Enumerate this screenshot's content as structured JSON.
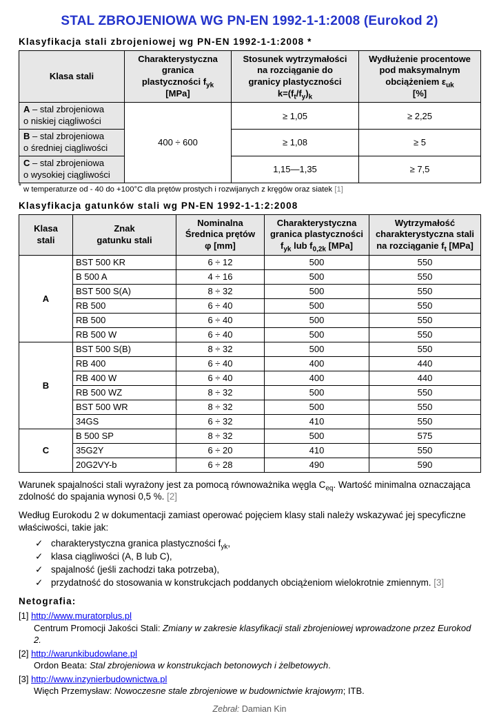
{
  "meta": {
    "accent_color": "#2333cb",
    "link_color": "#0000ee",
    "muted_color": "#7f7f7f",
    "header_bg": "#e7e7e7"
  },
  "title": "STAL ZBROJENIOWA WG PN-EN 1992-1-1:2008 (Eurokod 2)",
  "section1": {
    "heading": "Klasyfikacja stali zbrojeniowej wg PN-EN 1992-1-1:2008 *",
    "table": {
      "headers": [
        "Klasa stali",
        "Charakterystyczna\ngranica\nplastyczności f_{yk}\n[MPa]",
        "Stosunek wytrzymałości\nna rozciąganie do\ngranicy plastyczności\nk=(f_{t}/f_{y})_{k}",
        "Wydłużenie procentowe\npod maksymalnym\nobciążeniem ε_{uk}\n[%]"
      ],
      "shared_yield": "400 ÷ 600",
      "rows": [
        {
          "class_label": "**A** – stal zbrojeniowa\no niskiej ciągliwości",
          "ratio": "≥ 1,05",
          "elongation": "≥ 2,25"
        },
        {
          "class_label": "**B** – stal zbrojeniowa\no średniej ciągliwości",
          "ratio": "≥ 1,08",
          "elongation": "≥ 5"
        },
        {
          "class_label": "**C** – stal zbrojeniowa\no wysokiej ciągliwości",
          "ratio": "1,15—1,35",
          "elongation": "≥ 7,5"
        }
      ],
      "footnote": "^{*} w temperaturze od - 40 do +100°C dla prętów prostych i rozwijanych z kręgów oraz siatek ~{[1]}"
    }
  },
  "section2": {
    "heading": "Klasyfikacja gatunków stali wg PN-EN 1992-1-1:2:2008",
    "table": {
      "headers": [
        "Klasa\nstali",
        "Znak\ngatunku stali",
        "Nominalna\nŚrednica prętów\nφ [mm]",
        "Charakterystyczna\ngranica plastyczności\nf_{yk} lub f_{0,2k} [MPa]",
        "Wytrzymałość\ncharakterystyczna stali\nna rozciąganie f_{t} [MPa]"
      ],
      "groups": [
        {
          "klasa": "A",
          "rows": [
            [
              "BST 500 KR",
              "6 ÷ 12",
              "500",
              "550"
            ],
            [
              "B 500 A",
              "4 ÷ 16",
              "500",
              "550"
            ],
            [
              "BST 500 S(A)",
              "8 ÷ 32",
              "500",
              "550"
            ],
            [
              "RB 500",
              "6 ÷ 40",
              "500",
              "550"
            ],
            [
              "RB 500",
              "6 ÷ 40",
              "500",
              "550"
            ],
            [
              "RB 500 W",
              "6 ÷ 40",
              "500",
              "550"
            ]
          ]
        },
        {
          "klasa": "B",
          "rows": [
            [
              "BST 500 S(B)",
              "8 ÷ 32",
              "500",
              "550"
            ],
            [
              "RB 400",
              "6 ÷ 40",
              "400",
              "440"
            ],
            [
              "RB 400 W",
              "6 ÷ 40",
              "400",
              "440"
            ],
            [
              "RB 500 WZ",
              "8 ÷ 32",
              "500",
              "550"
            ],
            [
              "BST 500 WR",
              "8 ÷ 32",
              "500",
              "550"
            ],
            [
              "34GS",
              "6 ÷ 32",
              "410",
              "550"
            ]
          ]
        },
        {
          "klasa": "C",
          "rows": [
            [
              "B 500 SP",
              "8 ÷ 32",
              "500",
              "575"
            ],
            [
              "35G2Y",
              "6 ÷ 20",
              "410",
              "550"
            ],
            [
              "20G2VY-b",
              "6 ÷ 28",
              "490",
              "590"
            ]
          ]
        }
      ]
    }
  },
  "weldability_paragraph": "Warunek spajalności stali wyrażony jest za pomocą równoważnika węgla C_{eq}. Wartość minimalna oznaczająca zdolność do spajania wynosi 0,5 %. ~{[2]}",
  "eurocode_note": {
    "intro": "Według Eurokodu 2 w dokumentacji zamiast operować pojęciem klasy stali należy wskazywać jej specyficzne właściwości, takie jak:",
    "check_glyph": "✓",
    "items": [
      "charakterystyczna granica plastyczności f_{yk},",
      "klasa ciągliwości (A, B lub C),",
      "spajalność (jeśli zachodzi taka potrzeba),",
      "przydatność do stosowania w konstrukcjach poddanych obciążeniom wielokrotnie zmiennym. ~{[3]}"
    ]
  },
  "netografia": {
    "heading": "Netografia:",
    "references": [
      {
        "marker": "[1]",
        "url": "http://www.muratorplus.pl",
        "description": [
          {
            "text": "Centrum Promocji Jakości Stali: ",
            "italic": false
          },
          {
            "text": "Zmiany w zakresie klasyfikacji stali zbrojeniowej wprowadzone przez Eurokod 2.",
            "italic": true
          }
        ]
      },
      {
        "marker": "[2]",
        "url": "http://warunkibudowlane.pl",
        "description": [
          {
            "text": "Ordon Beata: ",
            "italic": false
          },
          {
            "text": "Stal zbrojeniowa w konstrukcjach betonowych i żelbetowych",
            "italic": true
          },
          {
            "text": ".",
            "italic": false
          }
        ]
      },
      {
        "marker": "[3]",
        "url": "http://www.inzynierbudownictwa.pl",
        "description": [
          {
            "text": "Więch Przemysław: ",
            "italic": false
          },
          {
            "text": "Nowoczesne stale zbrojeniowe w budownictwie krajowym",
            "italic": true
          },
          {
            "text": "; ITB.",
            "italic": false
          }
        ]
      }
    ]
  },
  "footer": {
    "label": "Zebrał:",
    "name": "Damian Kin"
  }
}
